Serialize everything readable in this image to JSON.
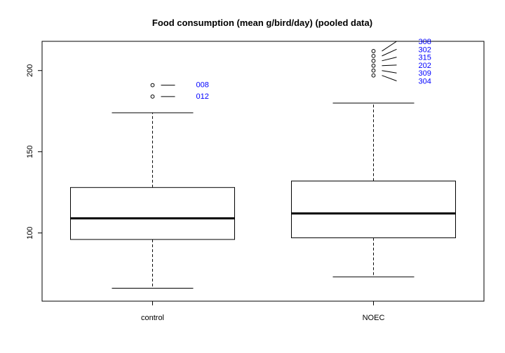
{
  "chart_data": {
    "type": "boxplot",
    "title": "Food consumption (mean g/bird/day) (pooled data)",
    "xlabel": "",
    "ylabel": "",
    "ylim": [
      58,
      218
    ],
    "yticks": [
      100,
      150,
      200
    ],
    "grid": false,
    "legend": "none",
    "categories": [
      "control",
      "NOEC"
    ],
    "boxes": [
      {
        "name": "control",
        "whisker_low": 66,
        "q1": 96,
        "median": 109,
        "q3": 128,
        "whisker_high": 174,
        "outliers": [
          {
            "value": 191,
            "label": "008"
          },
          {
            "value": 184,
            "label": "012"
          }
        ]
      },
      {
        "name": "NOEC",
        "whisker_low": 73,
        "q1": 97,
        "median": 112,
        "q3": 132,
        "whisker_high": 180,
        "outliers": [
          {
            "value": 212,
            "label": "308"
          },
          {
            "value": 209,
            "label": "302"
          },
          {
            "value": 206,
            "label": "315"
          },
          {
            "value": 203,
            "label": "202"
          },
          {
            "value": 200,
            "label": "309"
          },
          {
            "value": 197,
            "label": "304"
          }
        ]
      }
    ],
    "colors": {
      "box": "#000000",
      "outlier_label": "#0000ff",
      "background": "#ffffff"
    }
  }
}
